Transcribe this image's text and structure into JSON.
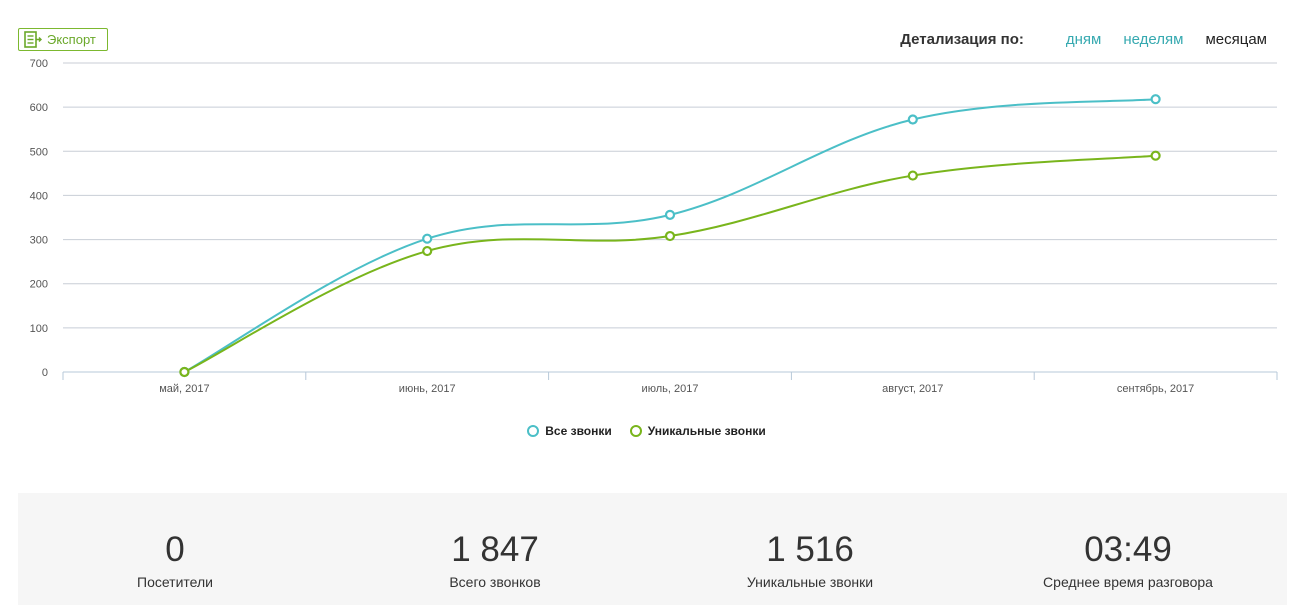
{
  "toolbar": {
    "export_label": "Экспорт"
  },
  "detail": {
    "label": "Детализация по:",
    "options": [
      "дням",
      "неделям",
      "месяцам"
    ],
    "active": "месяцам"
  },
  "colors": {
    "all_calls": "#4bbfc7",
    "unique_calls": "#79b51c",
    "grid": "#c8ced6"
  },
  "chart_data": {
    "type": "line",
    "categories": [
      "май, 2017",
      "июнь, 2017",
      "июль, 2017",
      "август, 2017",
      "сентябрь, 2017"
    ],
    "series": [
      {
        "name": "Все звонки",
        "values": [
          0,
          302,
          356,
          572,
          618
        ]
      },
      {
        "name": "Уникальные звонки",
        "values": [
          0,
          274,
          308,
          445,
          490
        ]
      }
    ],
    "yticks": [
      0,
      100,
      200,
      300,
      400,
      500,
      600,
      700
    ],
    "ylim": [
      0,
      700
    ],
    "legend": "bottom-center"
  },
  "stats": [
    {
      "value": "0",
      "label": "Посетители"
    },
    {
      "value": "1 847",
      "label": "Всего звонков"
    },
    {
      "value": "1 516",
      "label": "Уникальные звонки"
    },
    {
      "value": "03:49",
      "label": "Среднее время разговора"
    }
  ]
}
